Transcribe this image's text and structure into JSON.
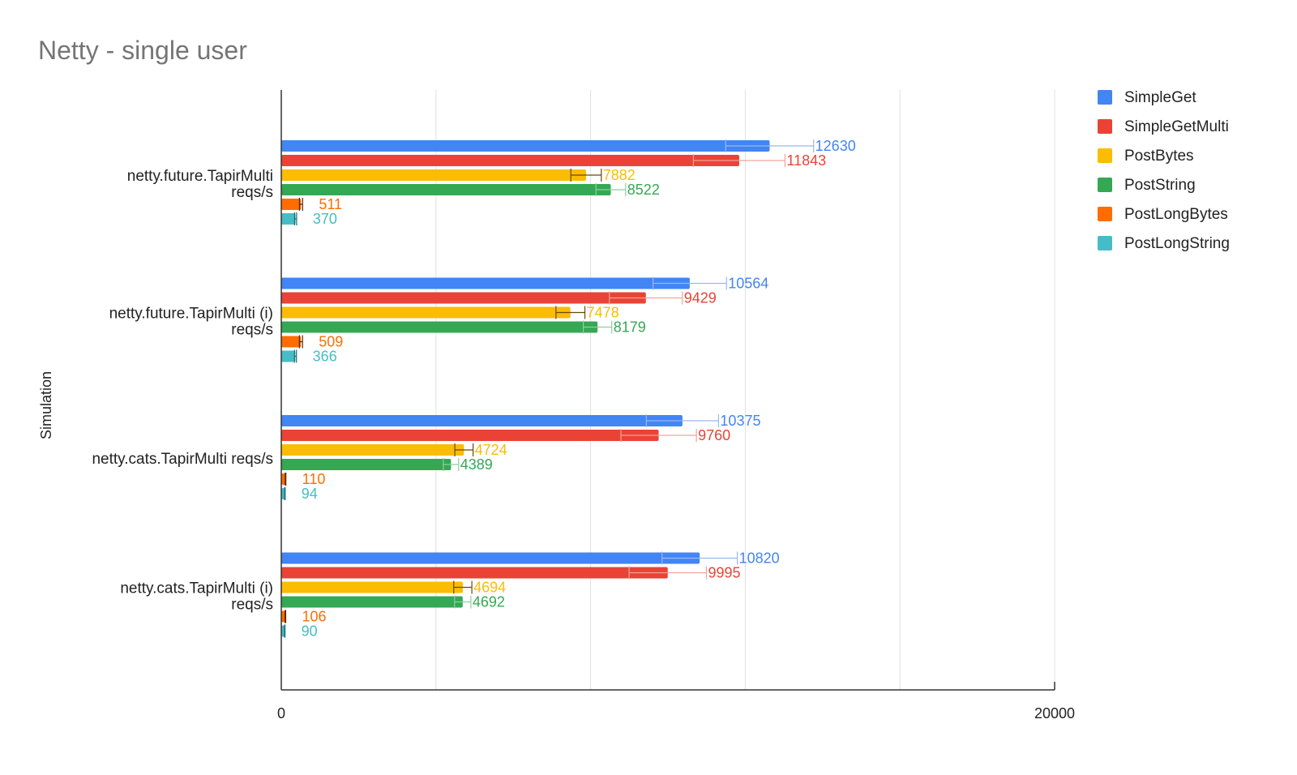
{
  "chart_data": {
    "type": "bar",
    "orientation": "horizontal",
    "title": "Netty - single user",
    "ylabel": "Simulation",
    "xlabel": "",
    "xlim": [
      0,
      20000
    ],
    "x_ticks": [
      "0",
      "20000"
    ],
    "grid": true,
    "legend_position": "right",
    "error_bars": true,
    "categories": [
      [
        "netty.future.TapirMulti",
        "reqs/s"
      ],
      [
        "netty.future.TapirMulti (i)",
        "reqs/s"
      ],
      [
        "netty.cats.TapirMulti reqs/s"
      ],
      [
        "netty.cats.TapirMulti (i)",
        "reqs/s"
      ]
    ],
    "series": [
      {
        "name": "SimpleGet",
        "color": "#4285f4",
        "values": [
          12630,
          10564,
          10375,
          10820
        ]
      },
      {
        "name": "SimpleGetMulti",
        "color": "#ea4335",
        "values": [
          11843,
          9429,
          9760,
          9995
        ]
      },
      {
        "name": "PostBytes",
        "color": "#fbbc04",
        "values": [
          7882,
          7478,
          4724,
          4694
        ]
      },
      {
        "name": "PostString",
        "color": "#34a853",
        "values": [
          8522,
          8179,
          4389,
          4692
        ]
      },
      {
        "name": "PostLongBytes",
        "color": "#ff6d01",
        "values": [
          511,
          509,
          110,
          106
        ]
      },
      {
        "name": "PostLongString",
        "color": "#46bdc6",
        "values": [
          370,
          366,
          94,
          90
        ]
      }
    ]
  }
}
